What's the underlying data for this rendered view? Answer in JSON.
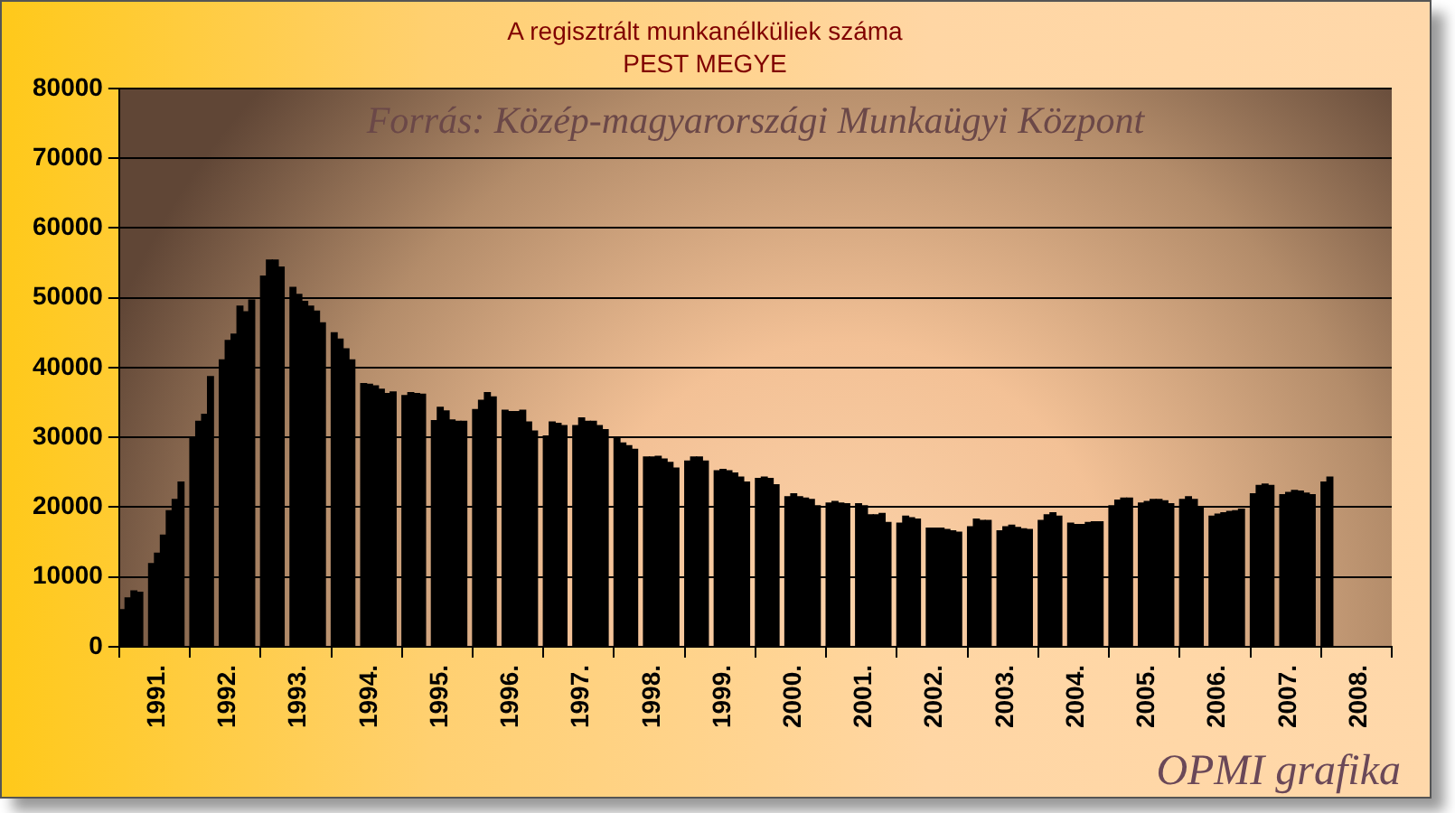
{
  "chart_data": {
    "type": "bar",
    "title": "A regisztrált munkanélküliek száma",
    "subtitle": "PEST MEGYE",
    "categories": [
      null,
      null,
      null,
      null,
      null,
      null,
      "1991.",
      null,
      null,
      null,
      null,
      null,
      null,
      null,
      null,
      null,
      null,
      null,
      "1992.",
      null,
      null,
      null,
      null,
      null,
      null,
      null,
      null,
      null,
      null,
      null,
      "1993.",
      null,
      null,
      null,
      null,
      null,
      null,
      null,
      null,
      null,
      null,
      null,
      "1994.",
      null,
      null,
      null,
      null,
      null,
      null,
      null,
      null,
      null,
      null,
      null,
      "1995.",
      null,
      null,
      null,
      null,
      null,
      null,
      null,
      null,
      null,
      null,
      null,
      "1996.",
      null,
      null,
      null,
      null,
      null,
      null,
      null,
      null,
      null,
      null,
      null,
      "1997.",
      null,
      null,
      null,
      null,
      null,
      null,
      null,
      null,
      null,
      null,
      null,
      "1998.",
      null,
      null,
      null,
      null,
      null,
      null,
      null,
      null,
      null,
      null,
      null,
      "1999.",
      null,
      null,
      null,
      null,
      null,
      null,
      null,
      null,
      null,
      null,
      null,
      "2000.",
      null,
      null,
      null,
      null,
      null,
      null,
      null,
      null,
      null,
      null,
      null,
      "2001.",
      null,
      null,
      null,
      null,
      null,
      null,
      null,
      null,
      null,
      null,
      null,
      "2002.",
      null,
      null,
      null,
      null,
      null,
      null,
      null,
      null,
      null,
      null,
      null,
      "2003.",
      null,
      null,
      null,
      null,
      null,
      null,
      null,
      null,
      null,
      null,
      null,
      "2004.",
      null,
      null,
      null,
      null,
      null,
      null,
      null,
      null,
      null,
      null,
      null,
      "2005.",
      null,
      null,
      null,
      null,
      null,
      null,
      null,
      null,
      null,
      null,
      null,
      "2006.",
      null,
      null,
      null,
      null,
      null,
      null,
      null,
      null,
      null,
      null,
      null,
      "2007.",
      null,
      null,
      null,
      null,
      null,
      null,
      null,
      null,
      null,
      null,
      null,
      "2008.",
      null,
      null,
      null,
      null,
      null
    ],
    "values": [
      5300,
      7000,
      8000,
      7800,
      null,
      11900,
      13400,
      16000,
      19500,
      21100,
      23600,
      null,
      29900,
      32300,
      33300,
      38700,
      null,
      41100,
      43900,
      44800,
      48800,
      48000,
      49700,
      null,
      53100,
      55400,
      55400,
      54400,
      null,
      51500,
      50500,
      49500,
      48800,
      48100,
      46400,
      null,
      45000,
      44100,
      42700,
      41100,
      null,
      37700,
      37600,
      37400,
      36900,
      36300,
      36500,
      null,
      36000,
      36400,
      36300,
      36200,
      null,
      32400,
      34300,
      33800,
      32500,
      32300,
      32300,
      null,
      34000,
      35300,
      36400,
      35800,
      null,
      33900,
      33700,
      33700,
      33900,
      32200,
      30900,
      null,
      30200,
      32200,
      32000,
      31700,
      null,
      31700,
      32800,
      32300,
      32300,
      31700,
      31100,
      null,
      29900,
      29200,
      28800,
      28300,
      null,
      27200,
      27200,
      27300,
      26900,
      26400,
      25600,
      null,
      26600,
      27200,
      27200,
      26600,
      null,
      25200,
      25400,
      25200,
      24900,
      24300,
      23600,
      null,
      24100,
      24300,
      24100,
      23200,
      null,
      21500,
      21900,
      21500,
      21300,
      21100,
      20200,
      null,
      20600,
      20800,
      20600,
      20500,
      null,
      20500,
      20200,
      18900,
      18900,
      19100,
      17800,
      null,
      17700,
      18700,
      18500,
      18300,
      null,
      17000,
      17000,
      17000,
      16800,
      16600,
      16400,
      null,
      17200,
      18300,
      18100,
      18100,
      null,
      16600,
      17200,
      17400,
      17100,
      16900,
      16800,
      null,
      18100,
      18900,
      19200,
      18700,
      null,
      17700,
      17500,
      17500,
      17800,
      17900,
      17900,
      null,
      20200,
      21000,
      21300,
      21300,
      null,
      20600,
      20800,
      21100,
      21100,
      20900,
      20500,
      null,
      21100,
      21500,
      21100,
      20000,
      null,
      18700,
      19000,
      19200,
      19400,
      19500,
      19700,
      null,
      21900,
      23100,
      23300,
      23100,
      null,
      21800,
      22100,
      22400,
      22300,
      22000,
      21800,
      null,
      23600,
      24300,
      null,
      null,
      null,
      null,
      null,
      null,
      null,
      null,
      null,
      null
    ],
    "color": "#000000",
    "ylim": [
      0,
      80000
    ],
    "yticks": [
      0,
      10000,
      20000,
      30000,
      40000,
      50000,
      60000,
      70000,
      80000
    ],
    "grid": "y",
    "legend": false,
    "annotations": [
      "Forrás: Közép-magyarországi Munkaügyi Központ",
      "OPMI grafika"
    ]
  }
}
